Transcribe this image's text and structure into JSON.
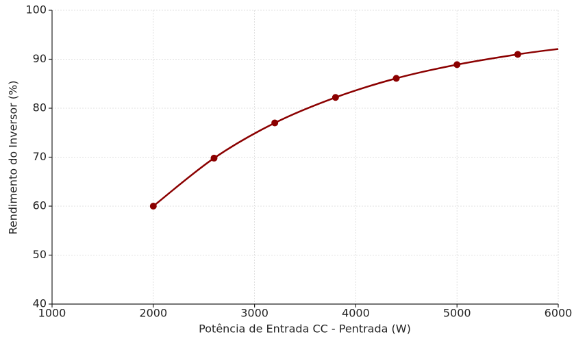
{
  "chart_data": {
    "type": "line",
    "xlabel": "Potência de Entrada CC - Pentrada (W)",
    "ylabel": "Rendimento do Inversor (%)",
    "xlim": [
      1000,
      6000
    ],
    "xticks": [
      1000,
      2000,
      3000,
      4000,
      5000,
      6000
    ],
    "ylim": [
      40,
      100
    ],
    "yticks": [
      40,
      50,
      60,
      70,
      80,
      90,
      100
    ],
    "grid": true,
    "series": [
      {
        "color": "#8b0000",
        "line": true,
        "markers": false,
        "x": [
          2000,
          2600,
          3200,
          3800,
          4400,
          5000,
          5600,
          6000
        ],
        "values": [
          60,
          69.8,
          77,
          82.2,
          86.1,
          88.9,
          91,
          92.1
        ]
      },
      {
        "color": "#8b0000",
        "line": false,
        "markers": true,
        "x": [
          2000,
          2600,
          3200,
          3800,
          4400,
          5000,
          5600
        ],
        "values": [
          60,
          69.8,
          77,
          82.2,
          86.1,
          88.9,
          91
        ]
      }
    ]
  }
}
